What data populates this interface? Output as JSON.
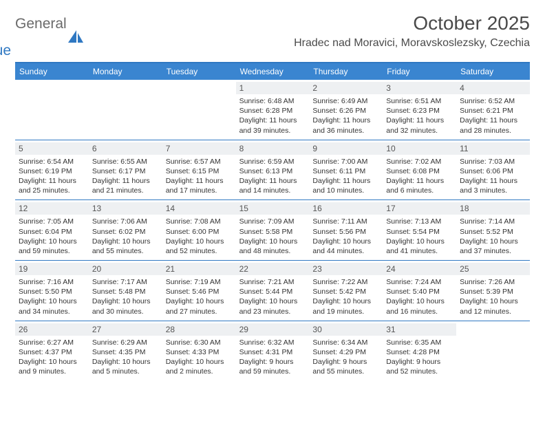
{
  "logo": {
    "line1": "General",
    "line2": "Blue"
  },
  "title": "October 2025",
  "location": "Hradec nad Moravici, Moravskoslezsky, Czechia",
  "day_headers": [
    "Sunday",
    "Monday",
    "Tuesday",
    "Wednesday",
    "Thursday",
    "Friday",
    "Saturday"
  ],
  "colors": {
    "header_bg": "#3a85d0",
    "header_text": "#ffffff",
    "rule": "#2f78c2",
    "daynum_bg": "#eef0f2",
    "text": "#333333",
    "logo_gray": "#6a6a6a",
    "logo_blue": "#2f78c2"
  },
  "weeks": [
    [
      {
        "blank": true
      },
      {
        "blank": true
      },
      {
        "blank": true
      },
      {
        "day": "1",
        "sunrise": "Sunrise: 6:48 AM",
        "sunset": "Sunset: 6:28 PM",
        "daylight1": "Daylight: 11 hours",
        "daylight2": "and 39 minutes."
      },
      {
        "day": "2",
        "sunrise": "Sunrise: 6:49 AM",
        "sunset": "Sunset: 6:26 PM",
        "daylight1": "Daylight: 11 hours",
        "daylight2": "and 36 minutes."
      },
      {
        "day": "3",
        "sunrise": "Sunrise: 6:51 AM",
        "sunset": "Sunset: 6:23 PM",
        "daylight1": "Daylight: 11 hours",
        "daylight2": "and 32 minutes."
      },
      {
        "day": "4",
        "sunrise": "Sunrise: 6:52 AM",
        "sunset": "Sunset: 6:21 PM",
        "daylight1": "Daylight: 11 hours",
        "daylight2": "and 28 minutes."
      }
    ],
    [
      {
        "day": "5",
        "sunrise": "Sunrise: 6:54 AM",
        "sunset": "Sunset: 6:19 PM",
        "daylight1": "Daylight: 11 hours",
        "daylight2": "and 25 minutes."
      },
      {
        "day": "6",
        "sunrise": "Sunrise: 6:55 AM",
        "sunset": "Sunset: 6:17 PM",
        "daylight1": "Daylight: 11 hours",
        "daylight2": "and 21 minutes."
      },
      {
        "day": "7",
        "sunrise": "Sunrise: 6:57 AM",
        "sunset": "Sunset: 6:15 PM",
        "daylight1": "Daylight: 11 hours",
        "daylight2": "and 17 minutes."
      },
      {
        "day": "8",
        "sunrise": "Sunrise: 6:59 AM",
        "sunset": "Sunset: 6:13 PM",
        "daylight1": "Daylight: 11 hours",
        "daylight2": "and 14 minutes."
      },
      {
        "day": "9",
        "sunrise": "Sunrise: 7:00 AM",
        "sunset": "Sunset: 6:11 PM",
        "daylight1": "Daylight: 11 hours",
        "daylight2": "and 10 minutes."
      },
      {
        "day": "10",
        "sunrise": "Sunrise: 7:02 AM",
        "sunset": "Sunset: 6:08 PM",
        "daylight1": "Daylight: 11 hours",
        "daylight2": "and 6 minutes."
      },
      {
        "day": "11",
        "sunrise": "Sunrise: 7:03 AM",
        "sunset": "Sunset: 6:06 PM",
        "daylight1": "Daylight: 11 hours",
        "daylight2": "and 3 minutes."
      }
    ],
    [
      {
        "day": "12",
        "sunrise": "Sunrise: 7:05 AM",
        "sunset": "Sunset: 6:04 PM",
        "daylight1": "Daylight: 10 hours",
        "daylight2": "and 59 minutes."
      },
      {
        "day": "13",
        "sunrise": "Sunrise: 7:06 AM",
        "sunset": "Sunset: 6:02 PM",
        "daylight1": "Daylight: 10 hours",
        "daylight2": "and 55 minutes."
      },
      {
        "day": "14",
        "sunrise": "Sunrise: 7:08 AM",
        "sunset": "Sunset: 6:00 PM",
        "daylight1": "Daylight: 10 hours",
        "daylight2": "and 52 minutes."
      },
      {
        "day": "15",
        "sunrise": "Sunrise: 7:09 AM",
        "sunset": "Sunset: 5:58 PM",
        "daylight1": "Daylight: 10 hours",
        "daylight2": "and 48 minutes."
      },
      {
        "day": "16",
        "sunrise": "Sunrise: 7:11 AM",
        "sunset": "Sunset: 5:56 PM",
        "daylight1": "Daylight: 10 hours",
        "daylight2": "and 44 minutes."
      },
      {
        "day": "17",
        "sunrise": "Sunrise: 7:13 AM",
        "sunset": "Sunset: 5:54 PM",
        "daylight1": "Daylight: 10 hours",
        "daylight2": "and 41 minutes."
      },
      {
        "day": "18",
        "sunrise": "Sunrise: 7:14 AM",
        "sunset": "Sunset: 5:52 PM",
        "daylight1": "Daylight: 10 hours",
        "daylight2": "and 37 minutes."
      }
    ],
    [
      {
        "day": "19",
        "sunrise": "Sunrise: 7:16 AM",
        "sunset": "Sunset: 5:50 PM",
        "daylight1": "Daylight: 10 hours",
        "daylight2": "and 34 minutes."
      },
      {
        "day": "20",
        "sunrise": "Sunrise: 7:17 AM",
        "sunset": "Sunset: 5:48 PM",
        "daylight1": "Daylight: 10 hours",
        "daylight2": "and 30 minutes."
      },
      {
        "day": "21",
        "sunrise": "Sunrise: 7:19 AM",
        "sunset": "Sunset: 5:46 PM",
        "daylight1": "Daylight: 10 hours",
        "daylight2": "and 27 minutes."
      },
      {
        "day": "22",
        "sunrise": "Sunrise: 7:21 AM",
        "sunset": "Sunset: 5:44 PM",
        "daylight1": "Daylight: 10 hours",
        "daylight2": "and 23 minutes."
      },
      {
        "day": "23",
        "sunrise": "Sunrise: 7:22 AM",
        "sunset": "Sunset: 5:42 PM",
        "daylight1": "Daylight: 10 hours",
        "daylight2": "and 19 minutes."
      },
      {
        "day": "24",
        "sunrise": "Sunrise: 7:24 AM",
        "sunset": "Sunset: 5:40 PM",
        "daylight1": "Daylight: 10 hours",
        "daylight2": "and 16 minutes."
      },
      {
        "day": "25",
        "sunrise": "Sunrise: 7:26 AM",
        "sunset": "Sunset: 5:39 PM",
        "daylight1": "Daylight: 10 hours",
        "daylight2": "and 12 minutes."
      }
    ],
    [
      {
        "day": "26",
        "sunrise": "Sunrise: 6:27 AM",
        "sunset": "Sunset: 4:37 PM",
        "daylight1": "Daylight: 10 hours",
        "daylight2": "and 9 minutes."
      },
      {
        "day": "27",
        "sunrise": "Sunrise: 6:29 AM",
        "sunset": "Sunset: 4:35 PM",
        "daylight1": "Daylight: 10 hours",
        "daylight2": "and 5 minutes."
      },
      {
        "day": "28",
        "sunrise": "Sunrise: 6:30 AM",
        "sunset": "Sunset: 4:33 PM",
        "daylight1": "Daylight: 10 hours",
        "daylight2": "and 2 minutes."
      },
      {
        "day": "29",
        "sunrise": "Sunrise: 6:32 AM",
        "sunset": "Sunset: 4:31 PM",
        "daylight1": "Daylight: 9 hours",
        "daylight2": "and 59 minutes."
      },
      {
        "day": "30",
        "sunrise": "Sunrise: 6:34 AM",
        "sunset": "Sunset: 4:29 PM",
        "daylight1": "Daylight: 9 hours",
        "daylight2": "and 55 minutes."
      },
      {
        "day": "31",
        "sunrise": "Sunrise: 6:35 AM",
        "sunset": "Sunset: 4:28 PM",
        "daylight1": "Daylight: 9 hours",
        "daylight2": "and 52 minutes."
      },
      {
        "blank": true
      }
    ]
  ]
}
